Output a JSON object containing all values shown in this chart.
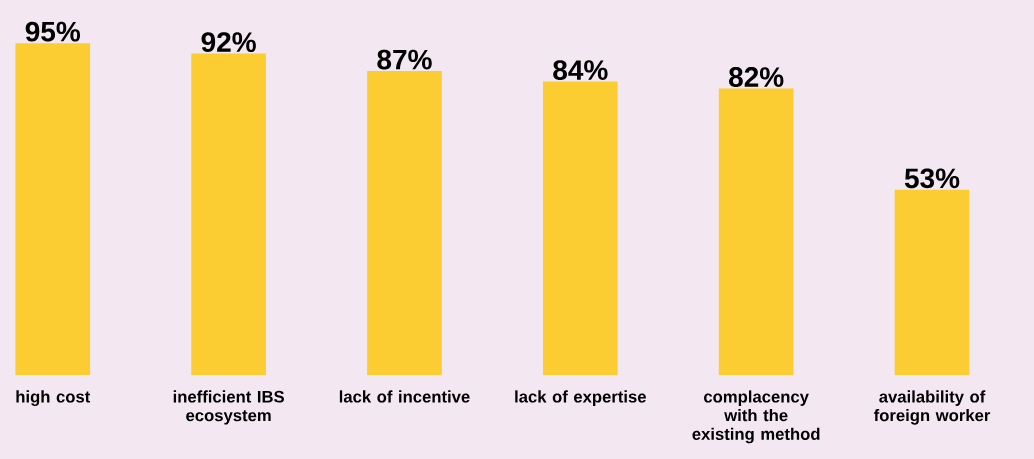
{
  "chart_data": {
    "type": "bar",
    "categories": [
      "high cost",
      "inefficient IBS ecosystem",
      "lack of incentive",
      "lack of expertise",
      "complacency with the existing method",
      "availability of foreign worker"
    ],
    "values": [
      95,
      92,
      87,
      84,
      82,
      53
    ],
    "value_labels": [
      "95%",
      "92%",
      "87%",
      "84%",
      "82%",
      "53%"
    ],
    "color": "#fccc33"
  }
}
